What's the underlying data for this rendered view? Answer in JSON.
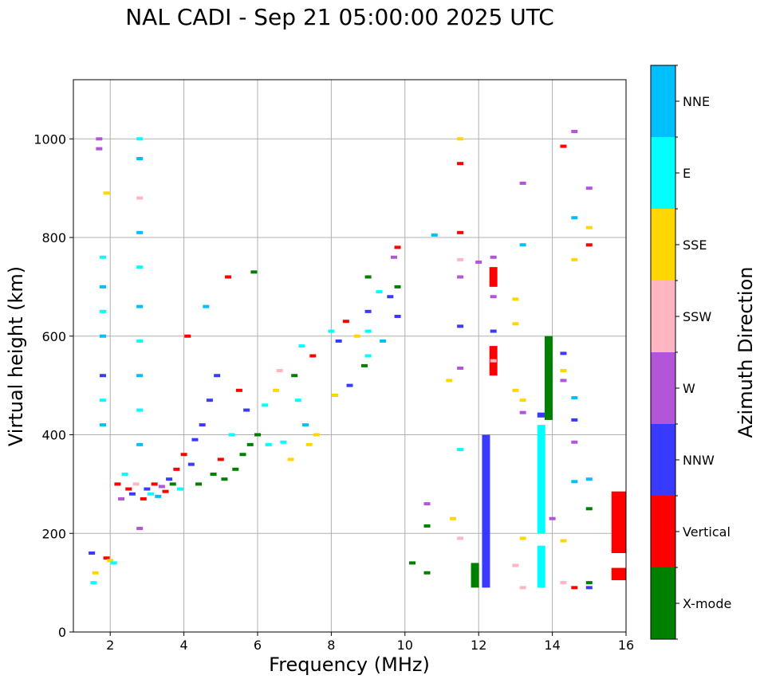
{
  "title": "NAL CADI - Sep 21 05:00:00 2025 UTC",
  "chart_data": {
    "type": "scatter",
    "title": "NAL CADI - Sep 21 05:00:00 2025 UTC",
    "xlabel": "Frequency (MHz)",
    "ylabel": "Virtual height (km)",
    "xlim": [
      1,
      16
    ],
    "ylim": [
      0,
      1120
    ],
    "xticks": [
      2,
      4,
      6,
      8,
      10,
      12,
      14,
      16
    ],
    "yticks": [
      0,
      200,
      400,
      600,
      800,
      1000
    ],
    "grid": true,
    "colorbar": {
      "label": "Azimuth Direction",
      "categories": [
        "X-mode",
        "Vertical",
        "NNW",
        "W",
        "SSW",
        "SSE",
        "E",
        "NNE"
      ],
      "colors": [
        "#008000",
        "#ff0000",
        "#3a3aff",
        "#b355d8",
        "#ffb6c1",
        "#ffd700",
        "#00ffff",
        "#00bfff"
      ]
    },
    "points": [
      {
        "f": 1.6,
        "h": 120,
        "d": "SSE"
      },
      {
        "f": 1.55,
        "h": 100,
        "d": "E"
      },
      {
        "f": 1.5,
        "h": 160,
        "d": "NNW"
      },
      {
        "f": 1.7,
        "h": 1000,
        "d": "W"
      },
      {
        "f": 1.7,
        "h": 980,
        "d": "W"
      },
      {
        "f": 1.8,
        "h": 760,
        "d": "E"
      },
      {
        "f": 1.8,
        "h": 700,
        "d": "NNE"
      },
      {
        "f": 1.8,
        "h": 650,
        "d": "E"
      },
      {
        "f": 1.8,
        "h": 600,
        "d": "NNE"
      },
      {
        "f": 1.8,
        "h": 520,
        "d": "NNW"
      },
      {
        "f": 1.8,
        "h": 470,
        "d": "E"
      },
      {
        "f": 1.8,
        "h": 420,
        "d": "NNE"
      },
      {
        "f": 1.9,
        "h": 890,
        "d": "SSE"
      },
      {
        "f": 1.9,
        "h": 150,
        "d": "Vertical"
      },
      {
        "f": 2.0,
        "h": 145,
        "d": "SSE"
      },
      {
        "f": 2.1,
        "h": 140,
        "d": "E"
      },
      {
        "f": 2.2,
        "h": 300,
        "d": "Vertical"
      },
      {
        "f": 2.3,
        "h": 270,
        "d": "W"
      },
      {
        "f": 2.4,
        "h": 320,
        "d": "E"
      },
      {
        "f": 2.5,
        "h": 290,
        "d": "Vertical"
      },
      {
        "f": 2.6,
        "h": 280,
        "d": "NNW"
      },
      {
        "f": 2.7,
        "h": 300,
        "d": "SSW"
      },
      {
        "f": 2.8,
        "h": 1000,
        "d": "E"
      },
      {
        "f": 2.8,
        "h": 960,
        "d": "NNE"
      },
      {
        "f": 2.8,
        "h": 880,
        "d": "SSW"
      },
      {
        "f": 2.8,
        "h": 810,
        "d": "NNE"
      },
      {
        "f": 2.8,
        "h": 740,
        "d": "E"
      },
      {
        "f": 2.8,
        "h": 660,
        "d": "NNE"
      },
      {
        "f": 2.8,
        "h": 590,
        "d": "E"
      },
      {
        "f": 2.8,
        "h": 520,
        "d": "NNE"
      },
      {
        "f": 2.8,
        "h": 450,
        "d": "E"
      },
      {
        "f": 2.8,
        "h": 380,
        "d": "NNE"
      },
      {
        "f": 2.8,
        "h": 210,
        "d": "W"
      },
      {
        "f": 2.9,
        "h": 270,
        "d": "Vertical"
      },
      {
        "f": 3.0,
        "h": 290,
        "d": "NNW"
      },
      {
        "f": 3.1,
        "h": 280,
        "d": "E"
      },
      {
        "f": 3.2,
        "h": 300,
        "d": "Vertical"
      },
      {
        "f": 3.3,
        "h": 275,
        "d": "NNE"
      },
      {
        "f": 3.4,
        "h": 295,
        "d": "W"
      },
      {
        "f": 3.5,
        "h": 285,
        "d": "Vertical"
      },
      {
        "f": 3.6,
        "h": 310,
        "d": "NNW"
      },
      {
        "f": 3.7,
        "h": 300,
        "d": "X-mode"
      },
      {
        "f": 3.8,
        "h": 330,
        "d": "Vertical"
      },
      {
        "f": 3.9,
        "h": 290,
        "d": "E"
      },
      {
        "f": 4.0,
        "h": 360,
        "d": "Vertical"
      },
      {
        "f": 4.1,
        "h": 600,
        "d": "Vertical"
      },
      {
        "f": 4.2,
        "h": 340,
        "d": "NNW"
      },
      {
        "f": 4.3,
        "h": 390,
        "d": "NNW"
      },
      {
        "f": 4.4,
        "h": 300,
        "d": "X-mode"
      },
      {
        "f": 4.5,
        "h": 420,
        "d": "NNW"
      },
      {
        "f": 4.6,
        "h": 660,
        "d": "NNE"
      },
      {
        "f": 4.7,
        "h": 470,
        "d": "NNW"
      },
      {
        "f": 4.8,
        "h": 320,
        "d": "X-mode"
      },
      {
        "f": 4.9,
        "h": 520,
        "d": "NNW"
      },
      {
        "f": 5.0,
        "h": 350,
        "d": "Vertical"
      },
      {
        "f": 5.1,
        "h": 310,
        "d": "X-mode"
      },
      {
        "f": 5.2,
        "h": 720,
        "d": "Vertical"
      },
      {
        "f": 5.3,
        "h": 400,
        "d": "E"
      },
      {
        "f": 5.4,
        "h": 330,
        "d": "X-mode"
      },
      {
        "f": 5.5,
        "h": 490,
        "d": "Vertical"
      },
      {
        "f": 5.6,
        "h": 360,
        "d": "X-mode"
      },
      {
        "f": 5.7,
        "h": 450,
        "d": "NNW"
      },
      {
        "f": 5.8,
        "h": 380,
        "d": "X-mode"
      },
      {
        "f": 5.9,
        "h": 730,
        "d": "X-mode"
      },
      {
        "f": 6.0,
        "h": 400,
        "d": "X-mode"
      },
      {
        "f": 6.2,
        "h": 460,
        "d": "E"
      },
      {
        "f": 6.3,
        "h": 380,
        "d": "E"
      },
      {
        "f": 6.5,
        "h": 490,
        "d": "SSE"
      },
      {
        "f": 6.6,
        "h": 530,
        "d": "SSW"
      },
      {
        "f": 6.7,
        "h": 385,
        "d": "E"
      },
      {
        "f": 6.9,
        "h": 350,
        "d": "SSE"
      },
      {
        "f": 7.0,
        "h": 520,
        "d": "X-mode"
      },
      {
        "f": 7.1,
        "h": 470,
        "d": "E"
      },
      {
        "f": 7.2,
        "h": 580,
        "d": "E"
      },
      {
        "f": 7.3,
        "h": 420,
        "d": "NNE"
      },
      {
        "f": 7.4,
        "h": 380,
        "d": "SSE"
      },
      {
        "f": 7.5,
        "h": 560,
        "d": "Vertical"
      },
      {
        "f": 7.6,
        "h": 400,
        "d": "SSE"
      },
      {
        "f": 8.0,
        "h": 610,
        "d": "E"
      },
      {
        "f": 8.1,
        "h": 480,
        "d": "SSE"
      },
      {
        "f": 8.2,
        "h": 590,
        "d": "NNW"
      },
      {
        "f": 8.4,
        "h": 630,
        "d": "Vertical"
      },
      {
        "f": 8.5,
        "h": 500,
        "d": "NNW"
      },
      {
        "f": 8.7,
        "h": 600,
        "d": "SSE"
      },
      {
        "f": 8.9,
        "h": 540,
        "d": "X-mode"
      },
      {
        "f": 9.0,
        "h": 720,
        "d": "X-mode"
      },
      {
        "f": 9.0,
        "h": 650,
        "d": "NNW"
      },
      {
        "f": 9.0,
        "h": 610,
        "d": "E"
      },
      {
        "f": 9.0,
        "h": 560,
        "d": "E"
      },
      {
        "f": 9.3,
        "h": 690,
        "d": "E"
      },
      {
        "f": 9.4,
        "h": 590,
        "d": "NNE"
      },
      {
        "f": 9.6,
        "h": 680,
        "d": "NNW"
      },
      {
        "f": 9.7,
        "h": 760,
        "d": "W"
      },
      {
        "f": 9.8,
        "h": 780,
        "d": "Vertical"
      },
      {
        "f": 9.8,
        "h": 700,
        "d": "X-mode"
      },
      {
        "f": 9.8,
        "h": 640,
        "d": "NNW"
      },
      {
        "f": 10.2,
        "h": 140,
        "d": "X-mode"
      },
      {
        "f": 10.6,
        "h": 260,
        "d": "W"
      },
      {
        "f": 10.6,
        "h": 215,
        "d": "X-mode"
      },
      {
        "f": 10.6,
        "h": 120,
        "d": "X-mode"
      },
      {
        "f": 10.8,
        "h": 805,
        "d": "NNE"
      },
      {
        "f": 11.2,
        "h": 510,
        "d": "SSE"
      },
      {
        "f": 11.3,
        "h": 230,
        "d": "SSE"
      },
      {
        "f": 11.5,
        "h": 1000,
        "d": "SSE"
      },
      {
        "f": 11.5,
        "h": 950,
        "d": "Vertical"
      },
      {
        "f": 11.5,
        "h": 810,
        "d": "Vertical"
      },
      {
        "f": 11.5,
        "h": 755,
        "d": "SSW"
      },
      {
        "f": 11.5,
        "h": 720,
        "d": "W"
      },
      {
        "f": 11.5,
        "h": 620,
        "d": "NNW"
      },
      {
        "f": 11.5,
        "h": 535,
        "d": "W"
      },
      {
        "f": 11.5,
        "h": 370,
        "d": "E"
      },
      {
        "f": 11.5,
        "h": 190,
        "d": "SSW"
      },
      {
        "f": 12.0,
        "h": 750,
        "d": "W"
      },
      {
        "f": 12.4,
        "h": 760,
        "d": "W"
      },
      {
        "f": 12.4,
        "h": 720,
        "d": "Vertical"
      },
      {
        "f": 12.4,
        "h": 680,
        "d": "W"
      },
      {
        "f": 12.4,
        "h": 610,
        "d": "NNW"
      },
      {
        "f": 12.4,
        "h": 550,
        "d": "SSW"
      },
      {
        "f": 13.0,
        "h": 675,
        "d": "SSE"
      },
      {
        "f": 13.0,
        "h": 625,
        "d": "SSE"
      },
      {
        "f": 13.0,
        "h": 490,
        "d": "SSE"
      },
      {
        "f": 13.0,
        "h": 135,
        "d": "SSW"
      },
      {
        "f": 13.2,
        "h": 910,
        "d": "W"
      },
      {
        "f": 13.2,
        "h": 785,
        "d": "NNE"
      },
      {
        "f": 13.2,
        "h": 470,
        "d": "SSE"
      },
      {
        "f": 13.2,
        "h": 445,
        "d": "W"
      },
      {
        "f": 13.2,
        "h": 190,
        "d": "SSE"
      },
      {
        "f": 13.2,
        "h": 90,
        "d": "SSW"
      },
      {
        "f": 14.0,
        "h": 230,
        "d": "W"
      },
      {
        "f": 14.3,
        "h": 985,
        "d": "Vertical"
      },
      {
        "f": 14.3,
        "h": 565,
        "d": "NNW"
      },
      {
        "f": 14.3,
        "h": 530,
        "d": "SSE"
      },
      {
        "f": 14.3,
        "h": 510,
        "d": "W"
      },
      {
        "f": 14.3,
        "h": 185,
        "d": "SSE"
      },
      {
        "f": 14.3,
        "h": 100,
        "d": "SSW"
      },
      {
        "f": 14.6,
        "h": 1015,
        "d": "W"
      },
      {
        "f": 14.6,
        "h": 840,
        "d": "NNE"
      },
      {
        "f": 14.6,
        "h": 755,
        "d": "SSE"
      },
      {
        "f": 14.6,
        "h": 475,
        "d": "NNE"
      },
      {
        "f": 14.6,
        "h": 430,
        "d": "NNW"
      },
      {
        "f": 14.6,
        "h": 385,
        "d": "W"
      },
      {
        "f": 14.6,
        "h": 305,
        "d": "NNE"
      },
      {
        "f": 14.6,
        "h": 90,
        "d": "Vertical"
      },
      {
        "f": 15.0,
        "h": 900,
        "d": "W"
      },
      {
        "f": 15.0,
        "h": 820,
        "d": "SSE"
      },
      {
        "f": 15.0,
        "h": 785,
        "d": "Vertical"
      },
      {
        "f": 15.0,
        "h": 310,
        "d": "NNE"
      },
      {
        "f": 15.0,
        "h": 250,
        "d": "X-mode"
      },
      {
        "f": 15.0,
        "h": 100,
        "d": "X-mode"
      },
      {
        "f": 15.0,
        "h": 90,
        "d": "NNW"
      }
    ],
    "bands": [
      {
        "f": 12.2,
        "h0": 90,
        "h1": 400,
        "d": "NNW"
      },
      {
        "f": 13.7,
        "h0": 90,
        "h1": 175,
        "d": "E"
      },
      {
        "f": 13.7,
        "h0": 200,
        "h1": 420,
        "d": "E"
      },
      {
        "f": 13.7,
        "h0": 435,
        "h1": 445,
        "d": "NNW"
      },
      {
        "f": 13.9,
        "h0": 430,
        "h1": 600,
        "d": "X-mode"
      },
      {
        "f": 11.9,
        "h0": 90,
        "h1": 140,
        "d": "X-mode"
      },
      {
        "f": 12.4,
        "h0": 520,
        "h1": 580,
        "d": "Vertical"
      },
      {
        "f": 12.4,
        "h0": 700,
        "h1": 740,
        "d": "Vertical"
      },
      {
        "f": 15.8,
        "h0": 160,
        "h1": 285,
        "d": "Vertical"
      },
      {
        "f": 15.8,
        "h0": 105,
        "h1": 130,
        "d": "Vertical"
      }
    ]
  }
}
